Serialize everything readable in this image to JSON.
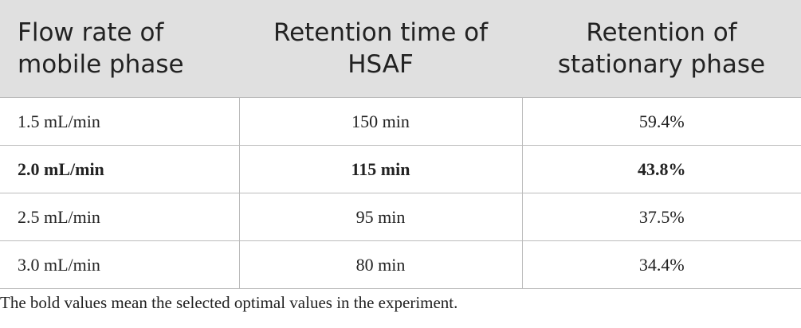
{
  "table": {
    "header": [
      "Flow rate of\nmobile phase",
      "Retention time of\nHSAF",
      "Retention of\nstationary phase"
    ],
    "rows": [
      [
        "1.5 mL/min",
        "150 min",
        "59.4%"
      ],
      [
        "2.0 mL/min",
        "115 min",
        "43.8%"
      ],
      [
        "2.5 mL/min",
        "95 min",
        "37.5%"
      ],
      [
        "3.0 mL/min",
        "80 min",
        "34.4%"
      ]
    ],
    "bold_row": 1
  },
  "footnote": "The bold values mean the selected optimal values in the experiment."
}
